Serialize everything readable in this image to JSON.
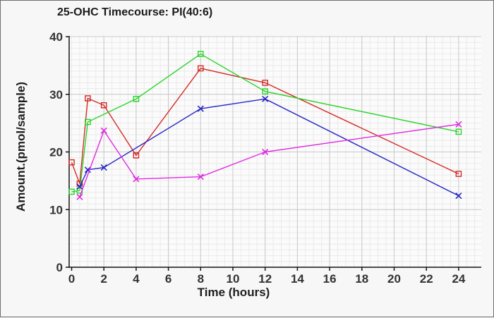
{
  "chart_data": {
    "type": "line",
    "title": "25-OHC Timecourse: PI(40:6)",
    "xlabel": "Time (hours)",
    "ylabel": "Amount.(pmol/sample)",
    "xlim": [
      0,
      25.5
    ],
    "ylim": [
      0,
      40
    ],
    "xticks": [
      0,
      2,
      4,
      6,
      8,
      10,
      12,
      14,
      16,
      18,
      20,
      22,
      24
    ],
    "yticks": [
      0,
      10,
      20,
      30,
      40
    ],
    "minor_x_step": 0.5,
    "minor_y_step": 1,
    "grid": true,
    "legend_position": "none",
    "series": [
      {
        "name": "series-red",
        "color": "#d42a24",
        "marker": "square",
        "x": [
          0,
          0.5,
          1,
          2,
          4,
          8,
          12,
          24
        ],
        "y": [
          18.2,
          14.5,
          29.3,
          28.1,
          19.4,
          34.5,
          32.0,
          16.2
        ]
      },
      {
        "name": "series-green",
        "color": "#2bd42b",
        "marker": "square",
        "x": [
          0,
          0.5,
          1,
          4,
          8,
          12,
          24
        ],
        "y": [
          13.1,
          13.3,
          25.2,
          29.2,
          37.0,
          30.5,
          23.5
        ]
      },
      {
        "name": "series-blue",
        "color": "#2525c8",
        "marker": "x",
        "x": [
          0.5,
          1,
          2,
          8,
          12,
          24
        ],
        "y": [
          14.0,
          16.9,
          17.3,
          27.5,
          29.2,
          12.4
        ]
      },
      {
        "name": "series-magenta",
        "color": "#e02ae0",
        "marker": "x",
        "x": [
          0.5,
          2,
          4,
          8,
          12,
          24
        ],
        "y": [
          12.2,
          23.7,
          15.3,
          15.7,
          20.0,
          24.8
        ]
      }
    ],
    "colors": {
      "plot_background": "#fbfbfb",
      "page_background": "#f7f7f7",
      "major_grid": "#c9c9c9",
      "minor_grid": "#eaeaea",
      "axis": "#141414",
      "tick_label": "#333333"
    }
  }
}
